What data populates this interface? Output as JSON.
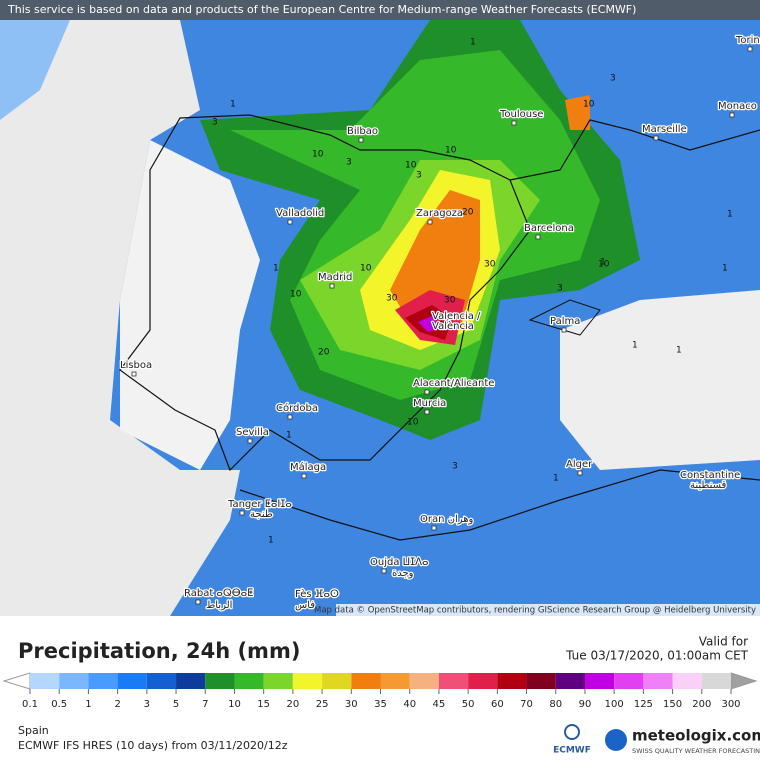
{
  "banner": "This service is based on data and products of the European Centre for Medium-range Weather Forecasts (ECMWF)",
  "attribution": "Map data © OpenStreetMap contributors, rendering GIScience Research Group @ Heidelberg University",
  "cities": [
    "Torin",
    "Monaco",
    "Toulouse",
    "Marseille",
    "Bilbao",
    "Valladolid",
    "Zaragoza",
    "Barcelona",
    "Madrid",
    "Valencia /",
    "València",
    "Palma",
    "Lisboa",
    "Alacant/Alicante",
    "Murcia",
    "Córdoba",
    "Sevilla",
    "Málaga",
    "Alger",
    "Constantine",
    "قسنطينة",
    "Tanger ⵟⴰⵏⵊⴰ",
    "طنجة",
    "Oran وهران",
    "Oujda ⵡⵊⴷⴰ",
    "وجدة",
    "Rabat ⴰⵕⴱⴰⵟ",
    "الرباط",
    "Fès ⴼⴰⵙ",
    "فاس"
  ],
  "contour_labels": [
    "1",
    "3",
    "3",
    "1",
    "10",
    "3",
    "10",
    "10",
    "3",
    "10",
    "1",
    "20",
    "10",
    "30",
    "30",
    "30",
    "20",
    "10",
    "1",
    "1",
    "3",
    "1",
    "10",
    "1",
    "1",
    "3",
    "1",
    "1",
    "10",
    "1"
  ],
  "legend": {
    "title": "Precipitation, 24h (mm)",
    "valid_label": "Valid for",
    "valid_time": "Tue 03/17/2020, 01:00am CET",
    "ticks": [
      0.1,
      0.5,
      1,
      2,
      3,
      5,
      7,
      10,
      15,
      20,
      25,
      30,
      35,
      40,
      45,
      50,
      60,
      70,
      80,
      90,
      100,
      125,
      150,
      200,
      300
    ],
    "colors": [
      "#b4d7ff",
      "#7ab7ff",
      "#4a9bff",
      "#1a7cf5",
      "#1460d0",
      "#0c3d9c",
      "#1f8f2a",
      "#35b82a",
      "#7ad62a",
      "#f4f42a",
      "#e0d820",
      "#f07f10",
      "#f59a30",
      "#f7b080",
      "#f05078",
      "#e0204a",
      "#b00010",
      "#800020",
      "#600080",
      "#c000e0",
      "#e040f0",
      "#f080f8",
      "#f8d0f8",
      "#d8d8d8"
    ]
  },
  "footer": {
    "region": "Spain",
    "model": "ECMWF IFS HRES (10 days) from 03/11/2020/12z",
    "ecmwf": "ECMWF",
    "brand": "meteologix.com",
    "tagline": "SWISS QUALITY WEATHER FORECASTING"
  }
}
